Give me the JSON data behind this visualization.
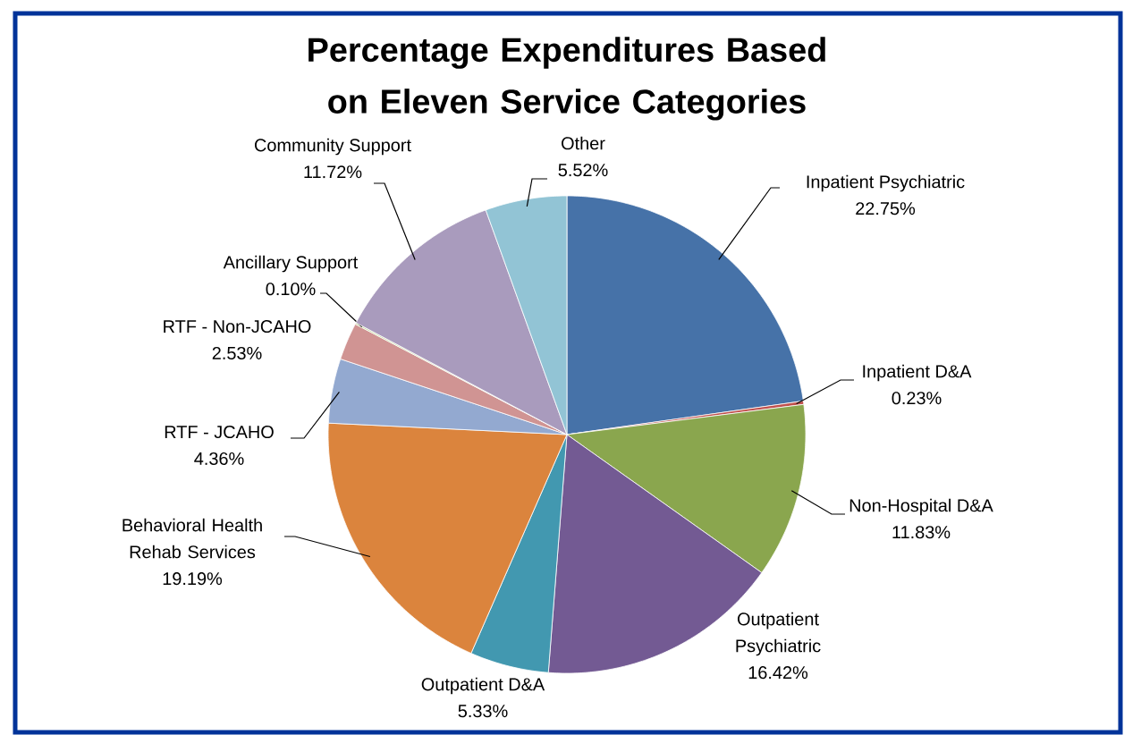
{
  "chart_data": {
    "type": "pie",
    "title": "Percentage Expenditures Based on Eleven Service Categories",
    "categories": [
      "Inpatient Psychiatric",
      "Inpatient D&A",
      "Non-Hospital D&A",
      "Outpatient Psychiatric",
      "Outpatient D&A",
      "Behavioral Health Rehab Services",
      "RTF - JCAHO",
      "RTF - Non-JCAHO",
      "Ancillary Support",
      "Community Support",
      "Other"
    ],
    "values": [
      22.75,
      0.23,
      11.83,
      16.42,
      5.33,
      19.19,
      4.36,
      2.53,
      0.1,
      11.72,
      5.52
    ],
    "value_labels": [
      "22.75%",
      "0.23%",
      "11.83%",
      "16.42%",
      "5.33%",
      "19.19%",
      "4.36%",
      "2.53%",
      "0.10%",
      "11.72%",
      "5.52%"
    ],
    "colors": [
      "#4672a8",
      "#c0504d",
      "#8aa64e",
      "#735a93",
      "#4298b0",
      "#db843d",
      "#93a9d0",
      "#d09493",
      "#c4d79b",
      "#a99bbd",
      "#92c4d5"
    ]
  }
}
